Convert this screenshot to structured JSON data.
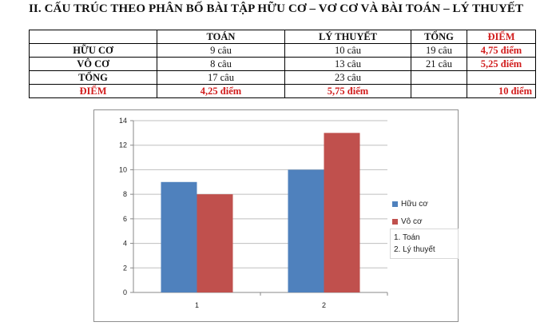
{
  "heading": "II. CẤU TRÚC THEO PHÂN BỐ BÀI TẬP HỮU CƠ – VƠ CƠ VÀ BÀI TOÁN – LÝ THUYẾT",
  "table": {
    "headers": [
      "",
      "TOÁN",
      "LÝ THUYẾT",
      "TỔNG",
      "ĐIỂM"
    ],
    "rows": [
      [
        "HỮU CƠ",
        "9 câu",
        "10 câu",
        "19 câu",
        "4,75 điểm"
      ],
      [
        "VÔ CƠ",
        "8 câu",
        "13 câu",
        "21 câu",
        "5,25 điểm"
      ],
      [
        "TỔNG",
        "17 câu",
        "23 câu",
        "",
        ""
      ],
      [
        "ĐIỂM",
        "4,25 điểm",
        "5,75 điểm",
        "",
        "10 điểm"
      ]
    ]
  },
  "colors": {
    "series1": "#4f81bd",
    "series2": "#c0504d",
    "emphasis": "#d11d1d"
  },
  "notes": [
    "1. Toán",
    "2. Lý thuyết"
  ],
  "chart_data": {
    "type": "bar",
    "categories": [
      "1",
      "2"
    ],
    "series": [
      {
        "name": "Hữu cơ",
        "values": [
          9,
          10
        ]
      },
      {
        "name": "Vô cơ",
        "values": [
          8,
          13
        ]
      }
    ],
    "ylim": [
      0,
      14
    ],
    "yticks": [
      "0",
      "2",
      "4",
      "6",
      "8",
      "10",
      "12",
      "14"
    ],
    "grid": true,
    "legend": "right"
  }
}
